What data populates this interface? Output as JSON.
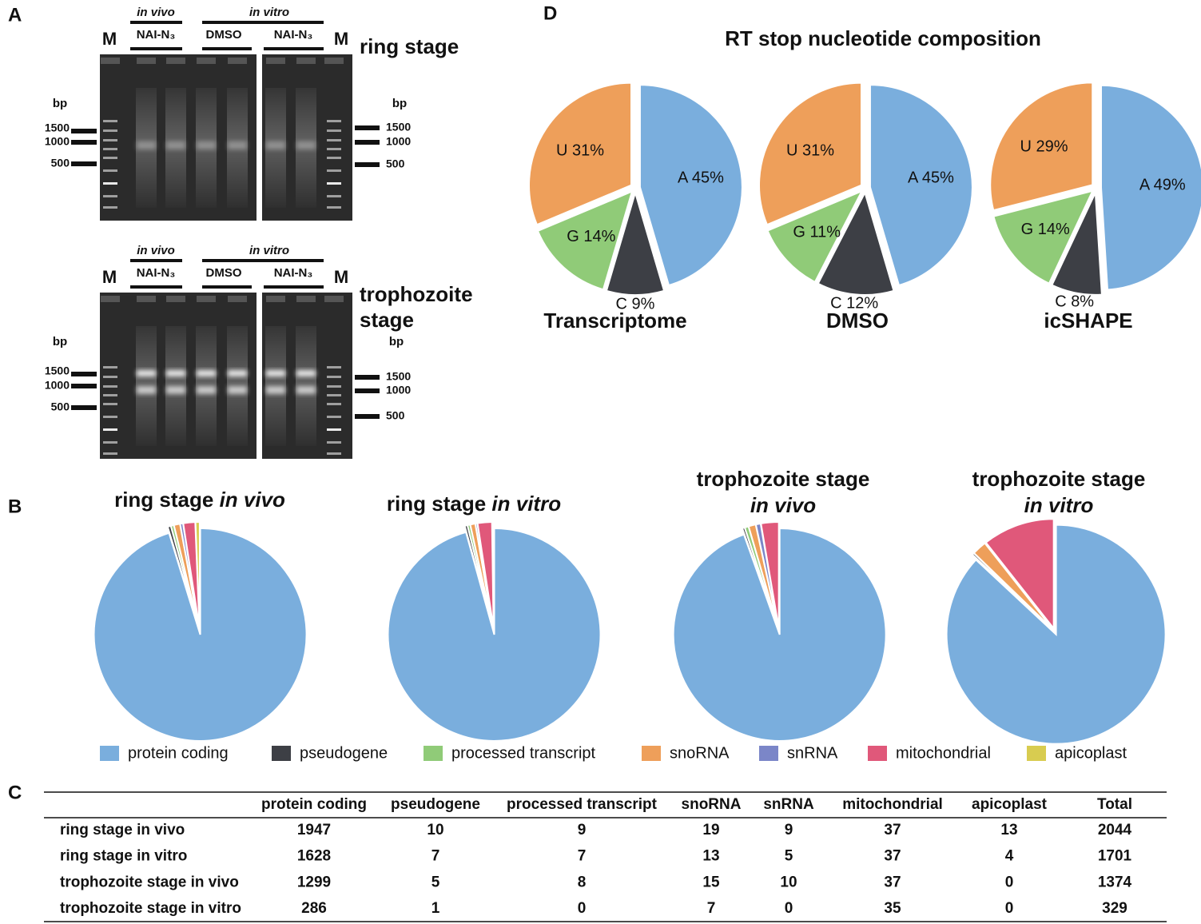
{
  "figure": {
    "panels": [
      "A",
      "B",
      "C",
      "D"
    ],
    "d_title": "RT stop nucleotide composition"
  },
  "gels": [
    {
      "groups": [
        "in vivo",
        "in vitro"
      ],
      "lanes": [
        "NAI-N₃",
        "DMSO",
        "NAI-N₃"
      ],
      "markers": [
        "M",
        "M"
      ],
      "stage": [
        "ring stage"
      ],
      "units": [
        "bp",
        "bp"
      ],
      "left_sizes": [
        1500,
        1000,
        500
      ],
      "right_sizes": [
        1500,
        1000,
        500
      ]
    },
    {
      "groups": [
        "in vivo",
        "in vitro"
      ],
      "lanes": [
        "NAI-N₃",
        "DMSO",
        "NAI-N₃"
      ],
      "markers": [
        "M",
        "M"
      ],
      "stage": [
        "trophozoite",
        "stage"
      ],
      "units": [
        "bp",
        "bp"
      ],
      "left_sizes": [
        1500,
        1000,
        500
      ],
      "right_sizes": [
        1500,
        1000,
        500
      ]
    }
  ],
  "chart_data": [
    {
      "type": "pie",
      "title": "Transcriptome",
      "categories": [
        "A",
        "C",
        "G",
        "U"
      ],
      "values": [
        45,
        9,
        14,
        31
      ],
      "value_labels": [
        "A 45%",
        "C 9%",
        "G 14%",
        "U 31%"
      ],
      "colors": [
        "#7aaedd",
        "#3d3f45",
        "#90cb78",
        "#ee9f5a"
      ]
    },
    {
      "type": "pie",
      "title": "DMSO",
      "categories": [
        "A",
        "C",
        "G",
        "U"
      ],
      "values": [
        45,
        12,
        11,
        31
      ],
      "value_labels": [
        "A 45%",
        "C 12%",
        "G 11%",
        "U 31%"
      ],
      "colors": [
        "#7aaedd",
        "#3d3f45",
        "#90cb78",
        "#ee9f5a"
      ]
    },
    {
      "type": "pie",
      "title": "icSHAPE",
      "categories": [
        "A",
        "C",
        "G",
        "U"
      ],
      "values": [
        49,
        8,
        14,
        29
      ],
      "value_labels": [
        "A 49%",
        "C 8%",
        "G 14%",
        "U 29%"
      ],
      "colors": [
        "#7aaedd",
        "#3d3f45",
        "#90cb78",
        "#ee9f5a"
      ]
    },
    {
      "type": "pie",
      "title": [
        "ring stage",
        "in vivo"
      ],
      "categories": [
        "protein coding",
        "pseudogene",
        "processed transcript",
        "snoRNA",
        "snRNA",
        "mitochondrial",
        "apicoplast"
      ],
      "values": [
        1947,
        10,
        9,
        19,
        9,
        37,
        13
      ],
      "colors": [
        "#7aaedd",
        "#3d3f45",
        "#90cb78",
        "#ee9f5a",
        "#7b86c8",
        "#e0587a",
        "#d8cc50"
      ]
    },
    {
      "type": "pie",
      "title": [
        "ring stage",
        "in vitro"
      ],
      "categories": [
        "protein coding",
        "pseudogene",
        "processed transcript",
        "snoRNA",
        "snRNA",
        "mitochondrial",
        "apicoplast"
      ],
      "values": [
        1628,
        7,
        7,
        13,
        5,
        37,
        4
      ],
      "colors": [
        "#7aaedd",
        "#3d3f45",
        "#90cb78",
        "#ee9f5a",
        "#7b86c8",
        "#e0587a",
        "#d8cc50"
      ]
    },
    {
      "type": "pie",
      "title": [
        "trophozoite stage",
        "in vivo"
      ],
      "categories": [
        "protein coding",
        "pseudogene",
        "processed transcript",
        "snoRNA",
        "snRNA",
        "mitochondrial",
        "apicoplast"
      ],
      "values": [
        1299,
        5,
        8,
        15,
        10,
        37,
        0
      ],
      "colors": [
        "#7aaedd",
        "#3d3f45",
        "#90cb78",
        "#ee9f5a",
        "#7b86c8",
        "#e0587a",
        "#d8cc50"
      ]
    },
    {
      "type": "pie",
      "title": [
        "trophozoite stage",
        "in vitro"
      ],
      "categories": [
        "protein coding",
        "pseudogene",
        "processed transcript",
        "snoRNA",
        "snRNA",
        "mitochondrial",
        "apicoplast"
      ],
      "values": [
        286,
        1,
        0,
        7,
        0,
        35,
        0
      ],
      "colors": [
        "#7aaedd",
        "#3d3f45",
        "#90cb78",
        "#ee9f5a",
        "#7b86c8",
        "#e0587a",
        "#d8cc50"
      ]
    }
  ],
  "table": {
    "columns": [
      "protein coding",
      "pseudogene",
      "processed transcript",
      "snoRNA",
      "snRNA",
      "mitochondrial",
      "apicoplast",
      "Total"
    ],
    "rows": [
      {
        "label": "ring stage in vivo",
        "cells": [
          1947,
          10,
          9,
          19,
          9,
          37,
          13,
          2044
        ]
      },
      {
        "label": "ring stage in vitro",
        "cells": [
          1628,
          7,
          7,
          13,
          5,
          37,
          4,
          1701
        ]
      },
      {
        "label": "trophozoite stage in vivo",
        "cells": [
          1299,
          5,
          8,
          15,
          10,
          37,
          0,
          1374
        ]
      },
      {
        "label": "trophozoite stage in vitro",
        "cells": [
          286,
          1,
          0,
          7,
          0,
          35,
          0,
          329
        ]
      }
    ]
  }
}
